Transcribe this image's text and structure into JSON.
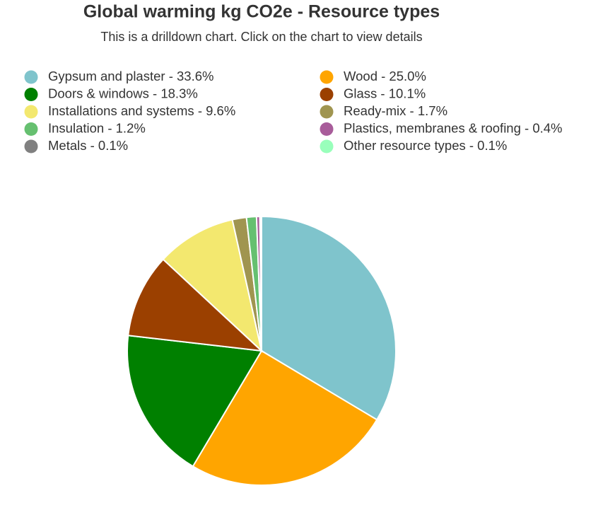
{
  "chart_data": {
    "type": "pie",
    "title": "Global warming kg CO2e - Resource types",
    "subtitle": "This is a drilldown chart. Click on the chart to view details",
    "categories": [
      "Gypsum and plaster - 33.6%",
      "Wood - 25.0%",
      "Doors & windows - 18.3%",
      "Glass - 10.1%",
      "Installations and systems - 9.6%",
      "Ready-mix - 1.7%",
      "Insulation - 1.2%",
      "Plastics, membranes & roofing - 0.4%",
      "Metals - 0.1%",
      "Other resource types - 0.1%"
    ],
    "values": [
      33.6,
      25.0,
      18.3,
      10.1,
      9.6,
      1.7,
      1.2,
      0.4,
      0.1,
      0.1
    ],
    "colors": [
      "#7fc4cc",
      "#ffa500",
      "#008000",
      "#9b4000",
      "#f3e86f",
      "#a09550",
      "#66c070",
      "#a85c9a",
      "#808080",
      "#99ffbb"
    ]
  }
}
